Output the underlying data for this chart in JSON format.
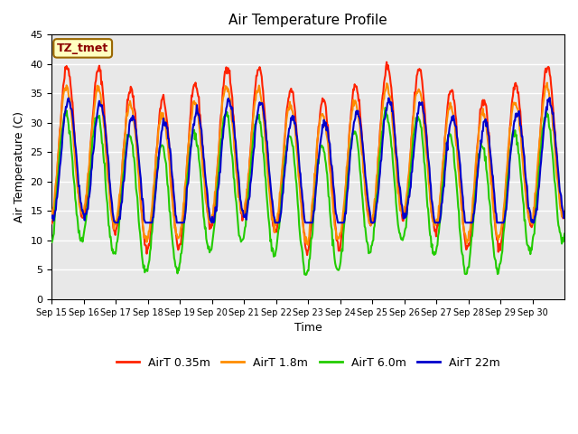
{
  "title": "Air Temperature Profile",
  "xlabel": "Time",
  "ylabel": "Air Temperature (C)",
  "annotation_text": "TZ_tmet",
  "annotation_color": "#8B0000",
  "annotation_bg": "#FFFFC0",
  "annotation_border": "#996600",
  "ylim": [
    0,
    45
  ],
  "plot_bg": "#E8E8E8",
  "fig_bg": "#FFFFFF",
  "grid_color": "#FFFFFF",
  "line_colors": {
    "AirT 0.35m": "#FF2200",
    "AirT 1.8m": "#FF8C00",
    "AirT 6.0m": "#22CC00",
    "AirT 22m": "#0000CC"
  },
  "legend_labels": [
    "AirT 0.35m",
    "AirT 1.8m",
    "AirT 6.0m",
    "AirT 22m"
  ],
  "xtick_labels": [
    "Sep 15",
    "Sep 16",
    "Sep 17",
    "Sep 18",
    "Sep 19",
    "Sep 20",
    "Sep 21",
    "Sep 22",
    "Sep 23",
    "Sep 24",
    "Sep 25",
    "Sep 26",
    "Sep 27",
    "Sep 28",
    "Sep 29",
    "Sep 30"
  ],
  "ytick_values": [
    0,
    5,
    10,
    15,
    20,
    25,
    30,
    35,
    40,
    45
  ]
}
